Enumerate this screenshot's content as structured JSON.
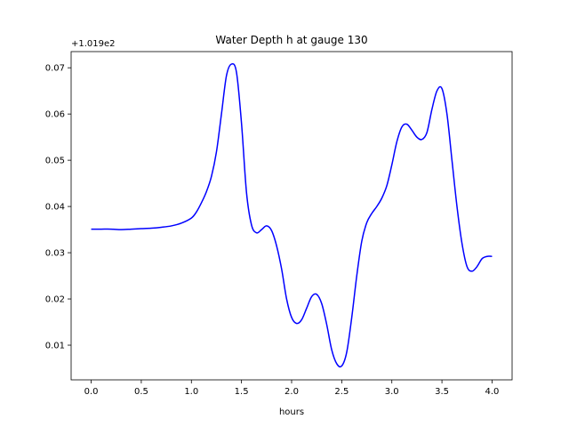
{
  "chart_data": {
    "type": "line",
    "title": "Water Depth h at gauge 130",
    "xlabel": "hours",
    "ylabel": "",
    "offset_label": "+1.019e2",
    "xlim": [
      -0.2,
      4.2
    ],
    "ylim": [
      0.0025,
      0.0735
    ],
    "xticks": [
      0.0,
      0.5,
      1.0,
      1.5,
      2.0,
      2.5,
      3.0,
      3.5,
      4.0
    ],
    "xtick_labels": [
      "0.0",
      "0.5",
      "1.0",
      "1.5",
      "2.0",
      "2.5",
      "3.0",
      "3.5",
      "4.0"
    ],
    "yticks": [
      0.01,
      0.02,
      0.03,
      0.04,
      0.05,
      0.06,
      0.07
    ],
    "ytick_labels": [
      "0.01",
      "0.02",
      "0.03",
      "0.04",
      "0.05",
      "0.06",
      "0.07"
    ],
    "grid": false,
    "series": [
      {
        "color": "#0000ff",
        "x": [
          0.0,
          0.1,
          0.2,
          0.3,
          0.4,
          0.5,
          0.6,
          0.7,
          0.8,
          0.9,
          1.0,
          1.05,
          1.1,
          1.15,
          1.2,
          1.25,
          1.3,
          1.35,
          1.4,
          1.45,
          1.5,
          1.55,
          1.6,
          1.65,
          1.7,
          1.75,
          1.8,
          1.85,
          1.9,
          1.95,
          2.0,
          2.05,
          2.1,
          2.15,
          2.2,
          2.25,
          2.3,
          2.35,
          2.4,
          2.45,
          2.5,
          2.55,
          2.6,
          2.65,
          2.7,
          2.75,
          2.8,
          2.85,
          2.9,
          2.95,
          3.0,
          3.05,
          3.1,
          3.15,
          3.2,
          3.25,
          3.3,
          3.35,
          3.4,
          3.45,
          3.5,
          3.55,
          3.6,
          3.65,
          3.7,
          3.75,
          3.8,
          3.85,
          3.9,
          3.95,
          4.0
        ],
        "y": [
          0.0351,
          0.0351,
          0.0351,
          0.035,
          0.0351,
          0.0352,
          0.0353,
          0.0355,
          0.0358,
          0.0364,
          0.0375,
          0.0388,
          0.0408,
          0.0432,
          0.0465,
          0.0518,
          0.06,
          0.0683,
          0.0708,
          0.069,
          0.058,
          0.043,
          0.036,
          0.0343,
          0.035,
          0.0358,
          0.0348,
          0.0315,
          0.0265,
          0.02,
          0.016,
          0.0147,
          0.0155,
          0.018,
          0.0205,
          0.021,
          0.019,
          0.0145,
          0.009,
          0.006,
          0.0055,
          0.0085,
          0.016,
          0.025,
          0.0325,
          0.0365,
          0.0385,
          0.04,
          0.0418,
          0.0445,
          0.049,
          0.054,
          0.0572,
          0.0578,
          0.0565,
          0.055,
          0.0545,
          0.056,
          0.061,
          0.065,
          0.0655,
          0.06,
          0.05,
          0.04,
          0.032,
          0.027,
          0.026,
          0.027,
          0.0287,
          0.0292,
          0.0292
        ]
      }
    ]
  }
}
